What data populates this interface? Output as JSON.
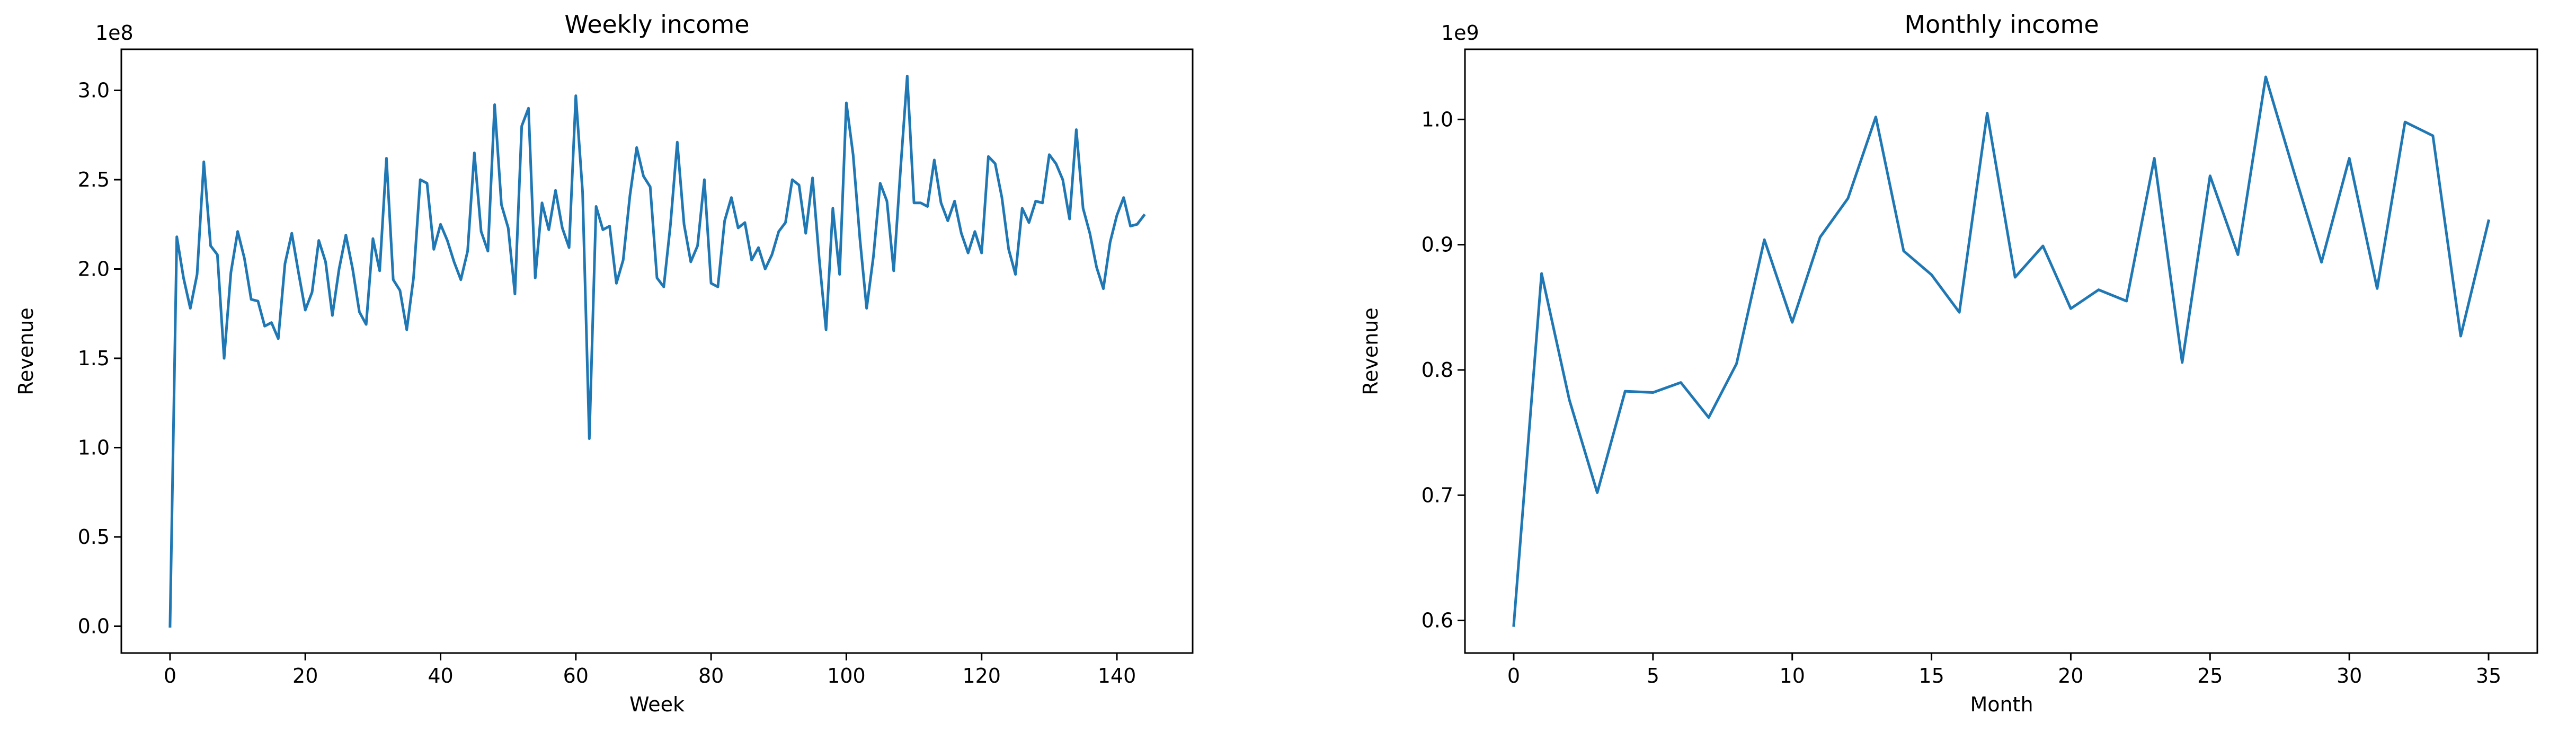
{
  "chart_data": [
    {
      "type": "line",
      "title": "Weekly income",
      "xlabel": "Week",
      "ylabel": "Revenue",
      "offset_label": "1e8",
      "xlim": [
        -7.2,
        151.2
      ],
      "ylim": [
        -0.15,
        3.23
      ],
      "xticks": [
        0,
        20,
        40,
        60,
        80,
        100,
        120,
        140
      ],
      "xtick_labels": [
        "0",
        "20",
        "40",
        "60",
        "80",
        "100",
        "120",
        "140"
      ],
      "yticks": [
        0.0,
        0.5,
        1.0,
        1.5,
        2.0,
        2.5,
        3.0
      ],
      "ytick_labels": [
        "0.0",
        "0.5",
        "1.0",
        "1.5",
        "2.0",
        "2.5",
        "3.0"
      ],
      "grid": false,
      "color": "#1f77b4",
      "series": [
        {
          "x": [
            0,
            1,
            2,
            3,
            4,
            5,
            6,
            7,
            8,
            9,
            10,
            11,
            12,
            13,
            14,
            15,
            16,
            17,
            18,
            19,
            20,
            21,
            22,
            23,
            24,
            25,
            26,
            27,
            28,
            29,
            30,
            31,
            32,
            33,
            34,
            35,
            36,
            37,
            38,
            39,
            40,
            41,
            42,
            43,
            44,
            45,
            46,
            47,
            48,
            49,
            50,
            51,
            52,
            53,
            54,
            55,
            56,
            57,
            58,
            59,
            60,
            61,
            62,
            63,
            64,
            65,
            66,
            67,
            68,
            69,
            70,
            71,
            72,
            73,
            74,
            75,
            76,
            77,
            78,
            79,
            80,
            81,
            82,
            83,
            84,
            85,
            86,
            87,
            88,
            89,
            90,
            91,
            92,
            93,
            94,
            95,
            96,
            97,
            98,
            99,
            100,
            101,
            102,
            103,
            104,
            105,
            106,
            107,
            108,
            109,
            110,
            111,
            112,
            113,
            114,
            115,
            116,
            117,
            118,
            119,
            120,
            121,
            122,
            123,
            124,
            125,
            126,
            127,
            128,
            129,
            130,
            131,
            132,
            133,
            134,
            135,
            136,
            137,
            138,
            139,
            140,
            141,
            142,
            143,
            144
          ],
          "y": [
            0.0,
            2.18,
            1.95,
            1.78,
            1.97,
            2.6,
            2.13,
            2.08,
            1.5,
            1.98,
            2.21,
            2.06,
            1.83,
            1.82,
            1.68,
            1.7,
            1.61,
            2.03,
            2.2,
            1.98,
            1.77,
            1.87,
            2.16,
            2.04,
            1.74,
            2.0,
            2.19,
            2.0,
            1.76,
            1.69,
            2.17,
            1.99,
            2.62,
            1.94,
            1.88,
            1.66,
            1.95,
            2.5,
            2.48,
            2.11,
            2.25,
            2.16,
            2.04,
            1.94,
            2.1,
            2.65,
            2.21,
            2.1,
            2.92,
            2.36,
            2.23,
            1.86,
            2.8,
            2.9,
            1.95,
            2.37,
            2.22,
            2.44,
            2.23,
            2.12,
            2.97,
            2.43,
            1.05,
            2.35,
            2.22,
            2.24,
            1.92,
            2.05,
            2.41,
            2.68,
            2.52,
            2.46,
            1.95,
            1.9,
            2.25,
            2.71,
            2.25,
            2.04,
            2.13,
            2.5,
            1.92,
            1.9,
            2.27,
            2.4,
            2.23,
            2.26,
            2.05,
            2.12,
            2.0,
            2.08,
            2.21,
            2.26,
            2.5,
            2.47,
            2.2,
            2.51,
            2.05,
            1.66,
            2.34,
            1.97,
            2.93,
            2.64,
            2.17,
            1.78,
            2.07,
            2.48,
            2.38,
            1.99,
            2.55,
            3.08,
            2.37,
            2.37,
            2.35,
            2.61,
            2.37,
            2.27,
            2.38,
            2.2,
            2.09,
            2.21,
            2.09,
            2.63,
            2.59,
            2.4,
            2.11,
            1.97,
            2.34,
            2.26,
            2.38,
            2.37,
            2.64,
            2.59,
            2.5,
            2.28,
            2.78,
            2.34,
            2.2,
            2.01,
            1.89,
            2.15,
            2.3,
            2.4,
            2.24,
            2.25,
            2.3
          ]
        }
      ]
    },
    {
      "type": "line",
      "title": "Monthly income",
      "xlabel": "Month",
      "ylabel": "Revenue",
      "offset_label": "1e9",
      "xlim": [
        -1.75,
        36.75
      ],
      "ylim": [
        0.574,
        1.056
      ],
      "xticks": [
        0,
        5,
        10,
        15,
        20,
        25,
        30,
        35
      ],
      "xtick_labels": [
        "0",
        "5",
        "10",
        "15",
        "20",
        "25",
        "30",
        "35"
      ],
      "yticks": [
        0.6,
        0.7,
        0.8,
        0.9,
        1.0
      ],
      "ytick_labels": [
        "0.6",
        "0.7",
        "0.8",
        "0.9",
        "1.0"
      ],
      "grid": false,
      "color": "#1f77b4",
      "series": [
        {
          "x": [
            0,
            1,
            2,
            3,
            4,
            5,
            6,
            7,
            8,
            9,
            10,
            11,
            12,
            13,
            14,
            15,
            16,
            17,
            18,
            19,
            20,
            21,
            22,
            23,
            24,
            25,
            26,
            27,
            28,
            29,
            30,
            31,
            32,
            33,
            34,
            35
          ],
          "y": [
            0.596,
            0.877,
            0.776,
            0.702,
            0.783,
            0.782,
            0.79,
            0.762,
            0.805,
            0.904,
            0.838,
            0.906,
            0.937,
            1.002,
            0.895,
            0.876,
            0.846,
            1.005,
            0.874,
            0.899,
            0.849,
            0.864,
            0.855,
            0.969,
            0.806,
            0.955,
            0.892,
            1.034,
            0.959,
            0.886,
            0.969,
            0.865,
            0.998,
            0.987,
            0.827,
            0.919
          ]
        }
      ]
    }
  ]
}
